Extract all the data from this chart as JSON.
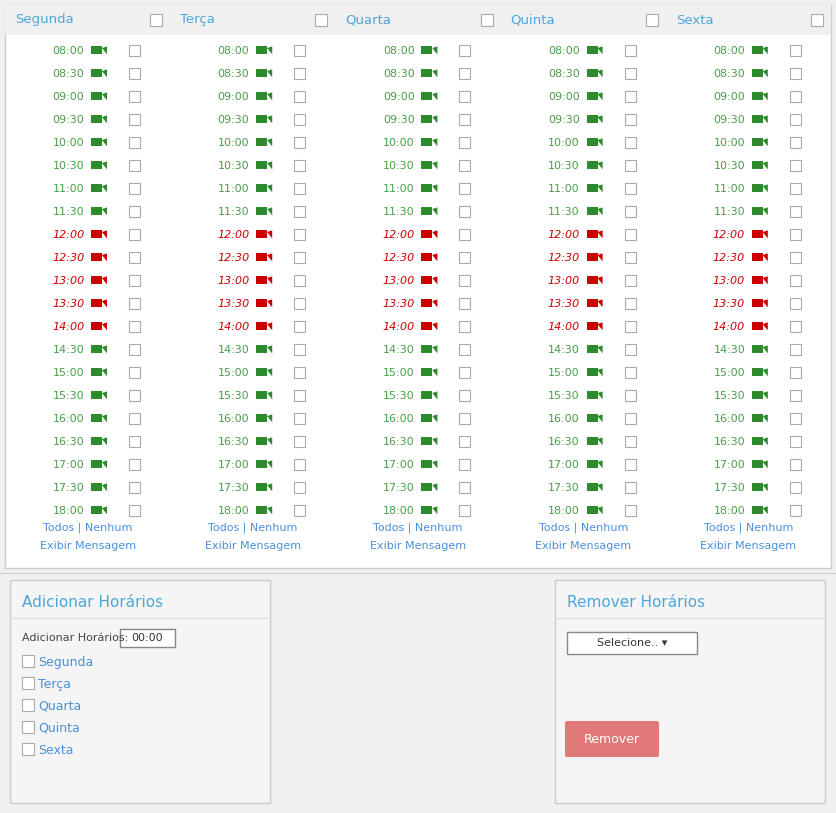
{
  "days": [
    "Segunda",
    "Terça",
    "Quarta",
    "Quinta",
    "Sexta"
  ],
  "times": [
    "08:00",
    "08:30",
    "09:00",
    "09:30",
    "10:00",
    "10:30",
    "11:00",
    "11:30",
    "12:00",
    "12:30",
    "13:00",
    "13:30",
    "14:00",
    "14:30",
    "15:00",
    "15:30",
    "16:00",
    "16:30",
    "17:00",
    "17:30",
    "18:00"
  ],
  "red_times": [
    "12:00",
    "12:30",
    "13:00",
    "13:30",
    "14:00"
  ],
  "orange_times": [],
  "green_times": [
    "08:00",
    "08:30",
    "09:00",
    "09:30",
    "10:00",
    "10:30",
    "11:00",
    "11:30",
    "14:30",
    "15:00",
    "15:30",
    "16:00",
    "16:30",
    "17:00",
    "17:30",
    "18:00"
  ],
  "bg_color": "#f0f0f0",
  "table_bg": "#ffffff",
  "header_color": "#4da6d9",
  "time_color_green": "#4a9e4a",
  "time_color_red": "#cc0000",
  "cam_color_green": "#2d8a2d",
  "cam_color_red": "#cc0000",
  "link_color": "#4a90d9",
  "panel_bg": "#f5f5f5",
  "panel_border": "#cccccc",
  "remover_btn_color": "#e07878",
  "bottom_title_adicionar": "Adicionar Horários",
  "bottom_title_remover": "Remover Horários",
  "adicionar_label": "Adicionar Horários:",
  "adicionar_value": "00:00",
  "dias_labels": [
    "Segunda",
    "Terça",
    "Quarta",
    "Quinta",
    "Sexta"
  ],
  "selecione_text": "Selecione.. ▾",
  "remover_text": "Remover",
  "todos_nenhum": "Todos | Nenhum",
  "exibir_mensagem": "Exibir Mensagem"
}
